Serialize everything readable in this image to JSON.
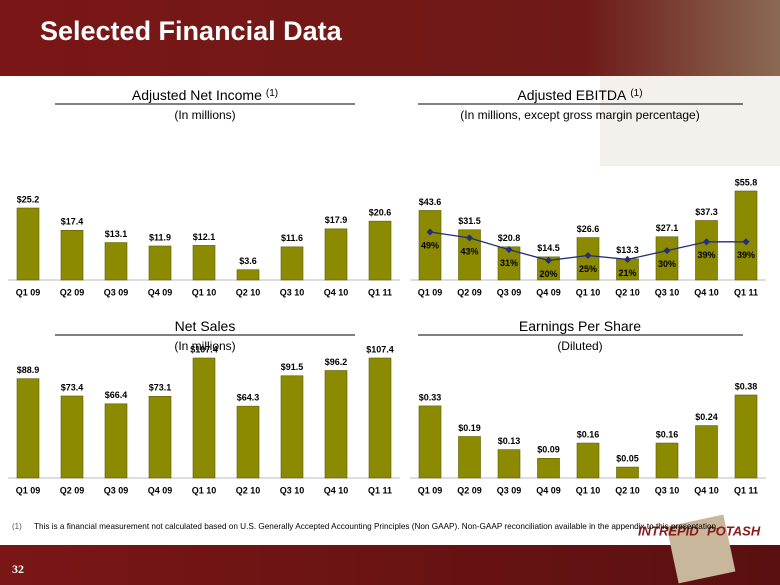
{
  "header": {
    "title": "Selected Financial Data"
  },
  "chart_data": [
    {
      "type": "bar",
      "title": "Adjusted Net Income",
      "title_note": "(1)",
      "subtitle": "(In millions)",
      "categories": [
        "Q1 09",
        "Q2 09",
        "Q3 09",
        "Q4 09",
        "Q1 10",
        "Q2 10",
        "Q3 10",
        "Q4 10",
        "Q1 11"
      ],
      "values": [
        25.2,
        17.4,
        13.1,
        11.9,
        12.1,
        3.6,
        11.6,
        17.9,
        20.6
      ],
      "value_labels": [
        "$25.2",
        "$17.4",
        "$13.1",
        "$11.9",
        "$12.1",
        "$3.6",
        "$11.6",
        "$17.9",
        "$20.6"
      ],
      "color": "#8c8a00"
    },
    {
      "type": "bar_line",
      "title": "Adjusted EBITDA",
      "title_note": "(1)",
      "subtitle": "(In millions, except gross margin percentage)",
      "categories": [
        "Q1 09",
        "Q2 09",
        "Q3 09",
        "Q4 09",
        "Q1 10",
        "Q2 10",
        "Q3 10",
        "Q4 10",
        "Q1 11"
      ],
      "values": [
        43.6,
        31.5,
        20.8,
        14.5,
        26.6,
        13.3,
        27.1,
        37.3,
        55.8
      ],
      "value_labels": [
        "$43.6",
        "$31.5",
        "$20.8",
        "$14.5",
        "$26.6",
        "$13.3",
        "$27.1",
        "$37.3",
        "$55.8"
      ],
      "color": "#8c8a00",
      "line": {
        "values": [
          49,
          43,
          31,
          20,
          25,
          21,
          30,
          39,
          39
        ],
        "value_labels": [
          "49%",
          "43%",
          "31%",
          "20%",
          "25%",
          "21%",
          "30%",
          "39%",
          "39%"
        ],
        "color": "#1f2f7a"
      }
    },
    {
      "type": "bar",
      "title": "Net Sales",
      "subtitle": "(In millions)",
      "categories": [
        "Q1 09",
        "Q2 09",
        "Q3 09",
        "Q4 09",
        "Q1 10",
        "Q2 10",
        "Q3 10",
        "Q4 10",
        "Q1 11"
      ],
      "values": [
        88.9,
        73.4,
        66.4,
        73.1,
        107.4,
        64.3,
        91.5,
        96.2,
        107.4
      ],
      "value_labels": [
        "$88.9",
        "$73.4",
        "$66.4",
        "$73.1",
        "$107.4",
        "$64.3",
        "$91.5",
        "$96.2",
        "$107.4"
      ],
      "color": "#8c8a00"
    },
    {
      "type": "bar",
      "title": "Earnings Per Share",
      "subtitle": "(Diluted)",
      "categories": [
        "Q1 09",
        "Q2 09",
        "Q3 09",
        "Q4 09",
        "Q1 10",
        "Q2 10",
        "Q3 10",
        "Q4 10",
        "Q1 11"
      ],
      "values": [
        0.33,
        0.19,
        0.13,
        0.09,
        0.16,
        0.05,
        0.16,
        0.24,
        0.38
      ],
      "value_labels": [
        "$0.33",
        "$0.19",
        "$0.13",
        "$0.09",
        "$0.16",
        "$0.05",
        "$0.16",
        "$0.24",
        "$0.38"
      ],
      "color": "#8c8a00"
    }
  ],
  "footnote": {
    "marker": "(1)",
    "text": "This is a financial  measurement not calculated based on U.S. Generally Accepted Accounting Principles (Non GAAP). Non-GAAP reconciliation available in the appendix to this presentation."
  },
  "page_number": "32",
  "logo": {
    "word1": "INTREPID",
    "word2": "POTASH"
  }
}
